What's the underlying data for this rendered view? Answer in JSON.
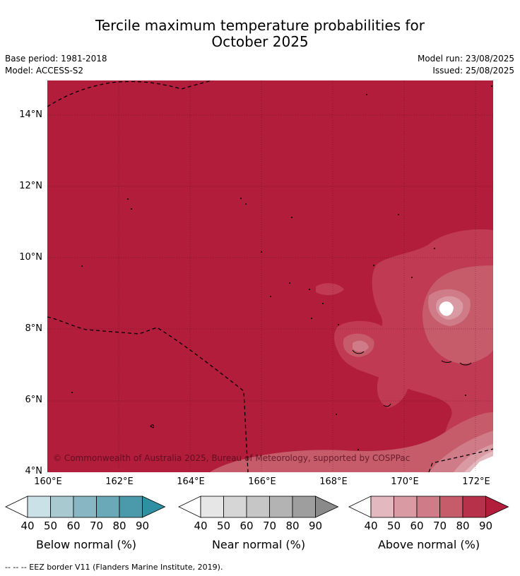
{
  "title_line1": "Tercile maximum temperature probabilities for",
  "title_line2": "October 2025",
  "base_period": "Base period: 1981-2018",
  "model": "Model: ACCESS-S2",
  "model_run": "Model run: 23/08/2025",
  "issued": "Issued: 25/08/2025",
  "copyright": "© Commonwealth of Australia 2025, Bureau of Meteorology, supported by COSPPac",
  "lat_labels": [
    "14°N",
    "12°N",
    "10°N",
    "8°N",
    "6°N",
    "4°N"
  ],
  "lon_labels": [
    "160°E",
    "162°E",
    "164°E",
    "166°E",
    "168°E",
    "170°E",
    "172°E"
  ],
  "colorbars": [
    {
      "label": "Below normal (%)",
      "ticks": [
        "40",
        "50",
        "60",
        "70",
        "80",
        "90"
      ],
      "colors": [
        "#c9e1e7",
        "#a8c9cf",
        "#88b7c3",
        "#6aaab8",
        "#4a9aab",
        "#2f8fa3"
      ]
    },
    {
      "label": "Near normal (%)",
      "ticks": [
        "40",
        "50",
        "60",
        "70",
        "80",
        "90"
      ],
      "colors": [
        "#e6e6e6",
        "#d6d6d6",
        "#c6c6c6",
        "#b3b3b3",
        "#9e9e9e",
        "#8a8a8a"
      ]
    },
    {
      "label": "Above normal (%)",
      "ticks": [
        "40",
        "50",
        "60",
        "70",
        "80",
        "90"
      ],
      "colors": [
        "#e3b8bf",
        "#d99aa4",
        "#d07c88",
        "#c65b6a",
        "#b8314a",
        "#b11d3b"
      ]
    }
  ],
  "footer": "--  --  -- EEZ border V11 (Flanders Marine Institute, 2019).",
  "colors": {
    "dominant": "#b11d3b",
    "level_80": "#bf3a52",
    "level_70": "#c65b6a",
    "level_60": "#d07c88",
    "level_50": "#d99aa4",
    "level_40": "#e3b8bf"
  }
}
